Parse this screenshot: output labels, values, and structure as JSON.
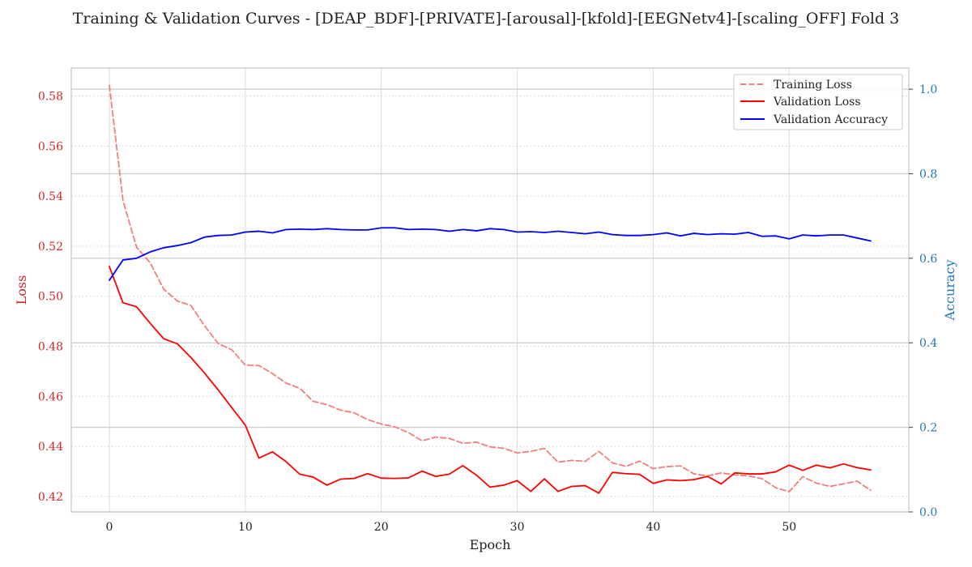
{
  "colors": {
    "loss_axis": "#d62728",
    "acc_axis": "#1f77b4",
    "train": "#f08080",
    "val_loss": "#ff0000",
    "val_acc": "#0000ff"
  },
  "chart_data": {
    "type": "line",
    "title": "Training & Validation Curves - [DEAP_BDF]-[PRIVATE]-[arousal]-[kfold]-[EEGNetv4]-[scaling_OFF] Fold 3",
    "xlabel": "Epoch",
    "ylabel_left": "Loss",
    "ylabel_right": "Accuracy",
    "xlim": [
      -2.8,
      58.8
    ],
    "ylim_left": [
      0.4138,
      0.5912
    ],
    "ylim_right": [
      0.0,
      1.05
    ],
    "xticks": [
      0,
      10,
      20,
      30,
      40,
      50
    ],
    "yticks_left": [
      0.42,
      0.44,
      0.46,
      0.48,
      0.5,
      0.52,
      0.54,
      0.56,
      0.58
    ],
    "yticks_right": [
      0.0,
      0.2,
      0.4,
      0.6,
      0.8,
      1.0
    ],
    "grid": true,
    "legend_position": "top-right",
    "x": [
      0,
      1,
      2,
      3,
      4,
      5,
      6,
      7,
      8,
      9,
      10,
      11,
      12,
      13,
      14,
      15,
      16,
      17,
      18,
      19,
      20,
      21,
      22,
      23,
      24,
      25,
      26,
      27,
      28,
      29,
      30,
      31,
      32,
      33,
      34,
      35,
      36,
      37,
      38,
      39,
      40,
      41,
      42,
      43,
      44,
      45,
      46,
      47,
      48,
      49,
      50,
      51,
      52,
      53,
      54,
      55,
      56
    ],
    "series": [
      {
        "name": "Training Loss",
        "axis": "left",
        "style": "dashed",
        "values": [
          0.5843,
          0.5383,
          0.5196,
          0.5134,
          0.5028,
          0.4981,
          0.4963,
          0.4882,
          0.4811,
          0.4786,
          0.4725,
          0.4723,
          0.4691,
          0.4653,
          0.4632,
          0.458,
          0.4567,
          0.4545,
          0.4534,
          0.4507,
          0.4489,
          0.4478,
          0.4455,
          0.4422,
          0.4437,
          0.4432,
          0.4412,
          0.4417,
          0.4398,
          0.4392,
          0.4374,
          0.438,
          0.4392,
          0.4337,
          0.4344,
          0.434,
          0.438,
          0.4334,
          0.432,
          0.4341,
          0.4311,
          0.4319,
          0.4322,
          0.429,
          0.4282,
          0.4294,
          0.4286,
          0.4282,
          0.4271,
          0.4235,
          0.4219,
          0.4279,
          0.4253,
          0.424,
          0.425,
          0.4261,
          0.4224
        ]
      },
      {
        "name": "Validation Loss",
        "axis": "left",
        "style": "solid",
        "values": [
          0.5119,
          0.4974,
          0.4958,
          0.4892,
          0.483,
          0.481,
          0.4755,
          0.4693,
          0.4626,
          0.4555,
          0.4485,
          0.4353,
          0.4378,
          0.4339,
          0.4289,
          0.4277,
          0.4245,
          0.4269,
          0.4272,
          0.4291,
          0.4273,
          0.4272,
          0.4274,
          0.4301,
          0.428,
          0.4289,
          0.4323,
          0.4285,
          0.4237,
          0.4245,
          0.4263,
          0.422,
          0.427,
          0.422,
          0.424,
          0.4243,
          0.4213,
          0.4296,
          0.4291,
          0.4288,
          0.4252,
          0.4266,
          0.4263,
          0.4267,
          0.428,
          0.425,
          0.4294,
          0.429,
          0.429,
          0.4298,
          0.4325,
          0.4304,
          0.4325,
          0.4314,
          0.433,
          0.4315,
          0.4306
        ]
      },
      {
        "name": "Validation Accuracy",
        "axis": "right",
        "style": "solid",
        "values": [
          0.548,
          0.596,
          0.6,
          0.615,
          0.625,
          0.63,
          0.637,
          0.65,
          0.654,
          0.655,
          0.662,
          0.664,
          0.66,
          0.668,
          0.669,
          0.668,
          0.67,
          0.668,
          0.667,
          0.667,
          0.672,
          0.672,
          0.668,
          0.669,
          0.668,
          0.664,
          0.668,
          0.665,
          0.67,
          0.668,
          0.662,
          0.663,
          0.661,
          0.664,
          0.661,
          0.658,
          0.662,
          0.656,
          0.654,
          0.654,
          0.656,
          0.66,
          0.653,
          0.659,
          0.656,
          0.658,
          0.657,
          0.661,
          0.652,
          0.653,
          0.646,
          0.655,
          0.653,
          0.655,
          0.655,
          0.648,
          0.641
        ]
      }
    ]
  }
}
